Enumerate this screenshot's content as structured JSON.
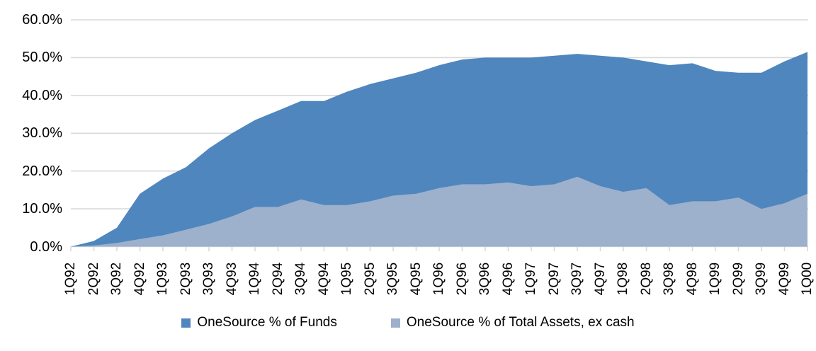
{
  "chart_data": {
    "type": "area",
    "categories": [
      "1Q92",
      "2Q92",
      "3Q92",
      "4Q92",
      "1Q93",
      "2Q93",
      "3Q93",
      "4Q93",
      "1Q94",
      "2Q94",
      "3Q94",
      "4Q94",
      "1Q95",
      "2Q95",
      "3Q95",
      "4Q95",
      "1Q96",
      "2Q96",
      "3Q96",
      "4Q96",
      "1Q97",
      "2Q97",
      "3Q97",
      "4Q97",
      "1Q98",
      "2Q98",
      "3Q98",
      "4Q98",
      "1Q99",
      "2Q99",
      "3Q99",
      "4Q99",
      "1Q00"
    ],
    "series": [
      {
        "name": "OneSource % of Funds",
        "color": "#4E86BD",
        "values": [
          0,
          1.5,
          5,
          14,
          18,
          21,
          26,
          30,
          33.5,
          36,
          38.5,
          38.5,
          41,
          43,
          44.5,
          46,
          48,
          49.5,
          50,
          50,
          50,
          50.5,
          51,
          50.5,
          50,
          49,
          48,
          48.5,
          46.5,
          46,
          46,
          49,
          51.5
        ]
      },
      {
        "name": "OneSource % of Total Assets, ex cash",
        "color": "#9DB0CC",
        "values": [
          0,
          0.3,
          1,
          2,
          3,
          4.5,
          6,
          8,
          10.5,
          10.5,
          12.5,
          11,
          11,
          12,
          13.5,
          14,
          15.5,
          16.5,
          16.5,
          17,
          16,
          16.5,
          18.5,
          16,
          14.5,
          15.5,
          11,
          12,
          12,
          13,
          10,
          11.5,
          14
        ]
      }
    ],
    "title": "",
    "xlabel": "",
    "ylabel": "",
    "ylim": [
      0,
      60
    ],
    "ytick_step": 10,
    "ytick_labels": [
      "0.0%",
      "10.0%",
      "20.0%",
      "30.0%",
      "40.0%",
      "50.0%",
      "60.0%"
    ],
    "grid": true,
    "gridline_color": "#D9D9D9",
    "axis_color": "#D9D9D9",
    "legend_position": "bottom"
  }
}
